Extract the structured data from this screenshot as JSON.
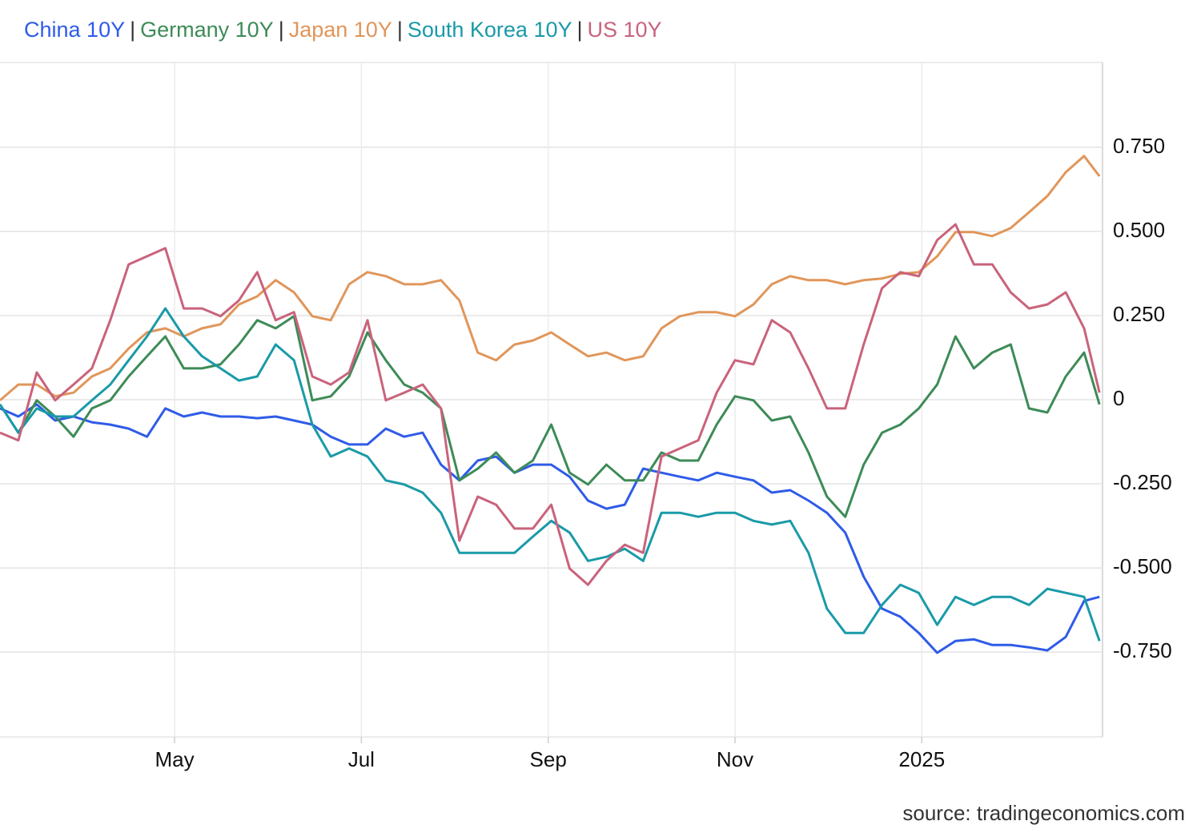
{
  "chart_data": {
    "type": "line",
    "legend_separator": "|",
    "source": "source: tradingeconomics.com",
    "grid": true,
    "xlim": [
      0,
      360
    ],
    "xticks": [
      {
        "value": 57,
        "label": "May"
      },
      {
        "value": 118,
        "label": "Jul"
      },
      {
        "value": 179,
        "label": "Sep"
      },
      {
        "value": 240,
        "label": "Nov"
      },
      {
        "value": 301,
        "label": "2025"
      }
    ],
    "ylim": [
      -1.002,
      1.002
    ],
    "yticks": [
      {
        "value": 0.75,
        "label": "0.750"
      },
      {
        "value": 0.5,
        "label": "0.500"
      },
      {
        "value": 0.25,
        "label": "0.250"
      },
      0,
      {
        "value": -0.25,
        "label": "-0.250"
      },
      {
        "value": -0.5,
        "label": "-0.500"
      },
      {
        "value": -0.75,
        "label": "-0.750"
      }
    ],
    "x": [
      0,
      6,
      12,
      18,
      24,
      30,
      36,
      42,
      48,
      54,
      60,
      66,
      72,
      78,
      84,
      90,
      96,
      102,
      108,
      114,
      120,
      126,
      132,
      138,
      144,
      150,
      156,
      162,
      168,
      174,
      180,
      186,
      192,
      198,
      204,
      210,
      216,
      222,
      228,
      234,
      240,
      246,
      252,
      258,
      264,
      270,
      276,
      282,
      288,
      294,
      300,
      306,
      312,
      318,
      324,
      330,
      336,
      342,
      348,
      354,
      359
    ],
    "series": [
      {
        "name": "China 10Y",
        "color": "#2f5be8",
        "values": [
          -0.026,
          -0.05,
          -0.014,
          -0.062,
          -0.05,
          -0.067,
          -0.074,
          -0.086,
          -0.11,
          -0.026,
          -0.05,
          -0.038,
          -0.05,
          -0.05,
          -0.055,
          -0.05,
          -0.062,
          -0.074,
          -0.11,
          -0.133,
          -0.133,
          -0.086,
          -0.11,
          -0.098,
          -0.193,
          -0.24,
          -0.181,
          -0.169,
          -0.217,
          -0.193,
          -0.193,
          -0.229,
          -0.3,
          -0.324,
          -0.312,
          -0.205,
          -0.217,
          -0.229,
          -0.24,
          -0.217,
          -0.229,
          -0.24,
          -0.276,
          -0.269,
          -0.3,
          -0.336,
          -0.395,
          -0.526,
          -0.621,
          -0.645,
          -0.693,
          -0.752,
          -0.717,
          -0.712,
          -0.729,
          -0.729,
          -0.736,
          -0.745,
          -0.705,
          -0.598,
          -0.586
        ]
      },
      {
        "name": "Germany 10Y",
        "color": "#3d8b57",
        "values": [
          -0.014,
          -0.098,
          -0.002,
          -0.05,
          -0.11,
          -0.026,
          -0.002,
          0.069,
          0.129,
          0.188,
          0.093,
          0.093,
          0.105,
          0.164,
          0.236,
          0.212,
          0.248,
          -0.002,
          0.01,
          0.069,
          0.2,
          0.117,
          0.045,
          0.021,
          -0.026,
          -0.24,
          -0.205,
          -0.157,
          -0.217,
          -0.181,
          -0.074,
          -0.217,
          -0.252,
          -0.193,
          -0.24,
          -0.24,
          -0.157,
          -0.181,
          -0.181,
          -0.074,
          0.01,
          -0.002,
          -0.062,
          -0.05,
          -0.157,
          -0.288,
          -0.348,
          -0.193,
          -0.098,
          -0.074,
          -0.026,
          0.045,
          0.188,
          0.093,
          0.14,
          0.164,
          -0.026,
          -0.038,
          0.069,
          0.14,
          -0.014
        ]
      },
      {
        "name": "Japan 10Y",
        "color": "#e0965a",
        "values": [
          -0.002,
          0.045,
          0.045,
          0.01,
          0.021,
          0.069,
          0.093,
          0.152,
          0.2,
          0.212,
          0.188,
          0.212,
          0.224,
          0.283,
          0.307,
          0.355,
          0.319,
          0.248,
          0.236,
          0.343,
          0.379,
          0.367,
          0.343,
          0.343,
          0.355,
          0.295,
          0.14,
          0.117,
          0.164,
          0.176,
          0.2,
          0.164,
          0.129,
          0.14,
          0.117,
          0.129,
          0.212,
          0.248,
          0.26,
          0.26,
          0.248,
          0.283,
          0.343,
          0.367,
          0.355,
          0.355,
          0.343,
          0.355,
          0.36,
          0.374,
          0.379,
          0.426,
          0.498,
          0.498,
          0.486,
          0.51,
          0.557,
          0.605,
          0.676,
          0.724,
          0.664
        ]
      },
      {
        "name": "South Korea 10Y",
        "color": "#1a9aa8",
        "values": [
          -0.014,
          -0.098,
          -0.026,
          -0.05,
          -0.05,
          -0.002,
          0.045,
          0.117,
          0.188,
          0.271,
          0.188,
          0.129,
          0.093,
          0.057,
          0.069,
          0.164,
          0.117,
          -0.074,
          -0.169,
          -0.145,
          -0.169,
          -0.24,
          -0.252,
          -0.276,
          -0.336,
          -0.455,
          -0.455,
          -0.455,
          -0.455,
          -0.407,
          -0.36,
          -0.395,
          -0.479,
          -0.467,
          -0.443,
          -0.479,
          -0.336,
          -0.336,
          -0.348,
          -0.336,
          -0.336,
          -0.36,
          -0.371,
          -0.36,
          -0.455,
          -0.621,
          -0.693,
          -0.693,
          -0.61,
          -0.55,
          -0.574,
          -0.669,
          -0.586,
          -0.61,
          -0.586,
          -0.586,
          -0.61,
          -0.562,
          -0.574,
          -0.586,
          -0.717
        ]
      },
      {
        "name": "US 10Y",
        "color": "#c9637c",
        "values": [
          -0.098,
          -0.121,
          0.081,
          -0.002,
          0.045,
          0.093,
          0.236,
          0.402,
          0.426,
          0.45,
          0.271,
          0.271,
          0.248,
          0.295,
          0.379,
          0.236,
          0.26,
          0.069,
          0.045,
          0.081,
          0.236,
          -0.002,
          0.021,
          0.045,
          -0.026,
          -0.419,
          -0.288,
          -0.312,
          -0.383,
          -0.383,
          -0.312,
          -0.502,
          -0.55,
          -0.479,
          -0.431,
          -0.455,
          -0.169,
          -0.145,
          -0.121,
          0.021,
          0.117,
          0.105,
          0.236,
          0.2,
          0.093,
          -0.026,
          -0.026,
          0.164,
          0.331,
          0.379,
          0.367,
          0.474,
          0.521,
          0.402,
          0.402,
          0.319,
          0.271,
          0.283,
          0.319,
          0.212,
          0.021
        ]
      }
    ]
  }
}
